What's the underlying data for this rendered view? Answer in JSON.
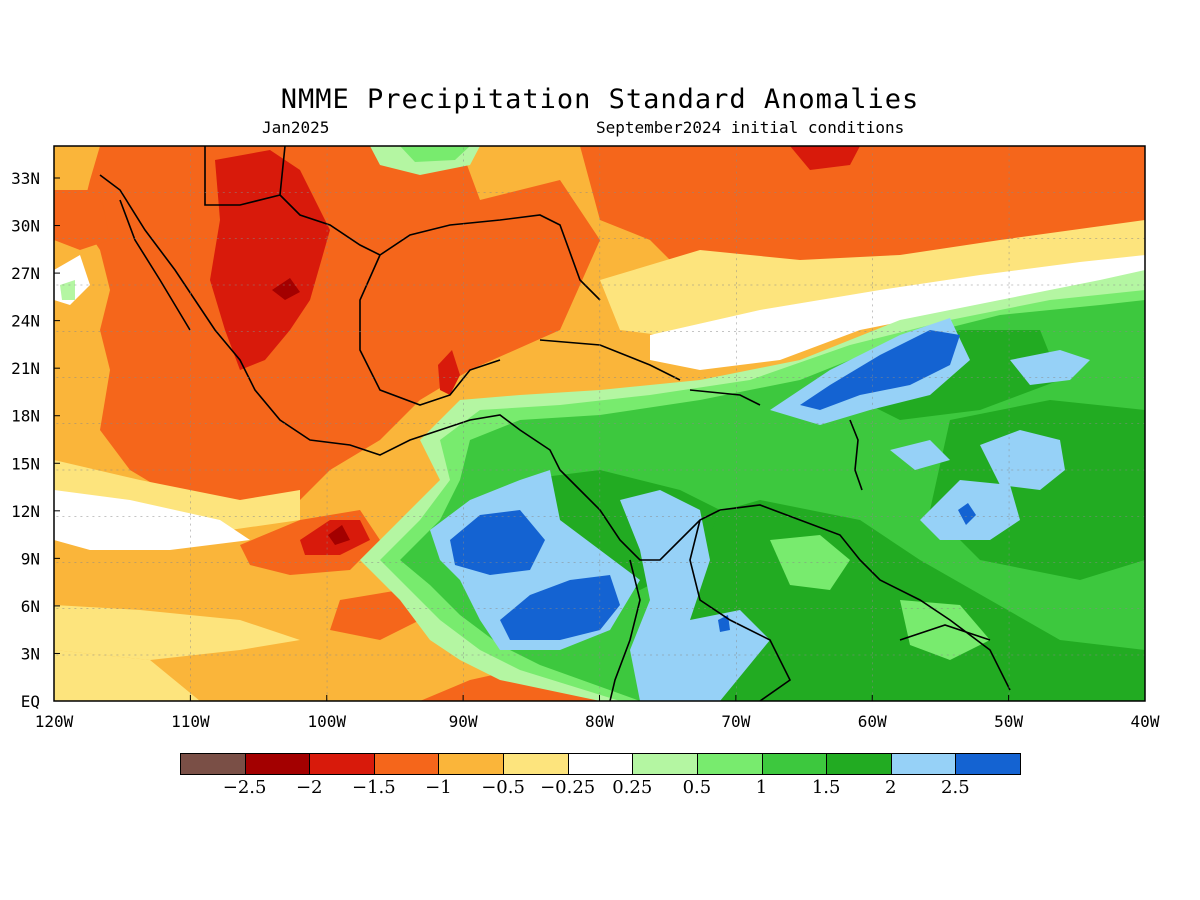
{
  "title": "NMME Precipitation Standard Anomalies",
  "valid_month": "Jan2025",
  "initial_conditions": "September2024 initial conditions",
  "lat_labels": [
    "33N",
    "30N",
    "27N",
    "24N",
    "21N",
    "18N",
    "15N",
    "12N",
    "9N",
    "6N",
    "3N",
    "EQ"
  ],
  "lon_labels": [
    "120W",
    "110W",
    "100W",
    "90W",
    "80W",
    "70W",
    "60W",
    "50W",
    "40W"
  ],
  "legend": {
    "colors": [
      "#7a4f46",
      "#a30000",
      "#d81a0b",
      "#f5661b",
      "#fab53a",
      "#fde47d",
      "#ffffff",
      "#b4f6a2",
      "#78eb6e",
      "#3dc83e",
      "#22ab22",
      "#96d1f7",
      "#1463d2"
    ],
    "labels": [
      "-2.5",
      "-2",
      "-1.5",
      "-1",
      "-0.5",
      "-0.25",
      "0.25",
      "0.5",
      "1",
      "1.5",
      "2",
      "2.5"
    ]
  }
}
